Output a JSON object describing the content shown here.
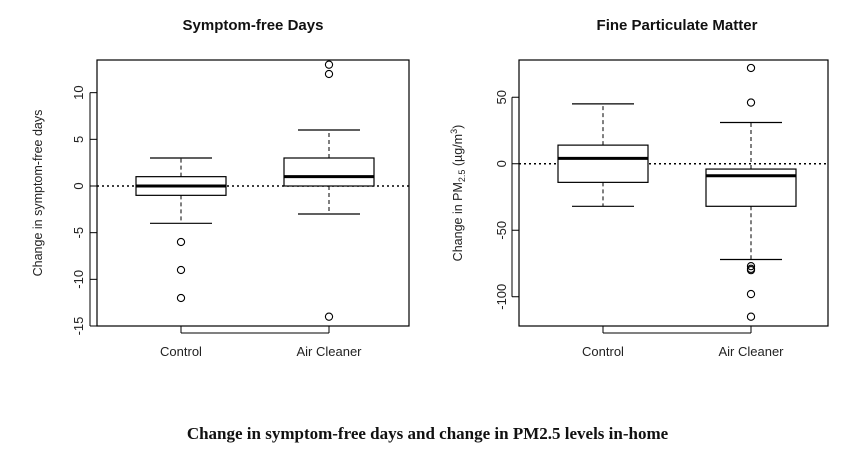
{
  "caption": "Change in symptom-free days and change in PM2.5 levels in-home",
  "chart_data": [
    {
      "type": "box",
      "title": "Symptom-free Days",
      "ylabel": "Change in symptom-free days",
      "ylabel_parts": [
        "Change in symptom-free days"
      ],
      "categories": [
        "Control",
        "Air Cleaner"
      ],
      "ylim": [
        -15,
        13.5
      ],
      "yticks": [
        -15,
        -10,
        -5,
        0,
        5,
        10
      ],
      "reference_line": 0,
      "boxes": [
        {
          "name": "Control",
          "whisker_low": -4,
          "q1": -1,
          "median": 0,
          "q3": 1,
          "whisker_high": 3,
          "outliers": [
            -6,
            -9,
            -12
          ]
        },
        {
          "name": "Air Cleaner",
          "whisker_low": -3,
          "q1": 0,
          "median": 1,
          "q3": 3,
          "whisker_high": 6,
          "outliers": [
            13,
            12,
            -14
          ]
        }
      ]
    },
    {
      "type": "box",
      "title": "Fine Particulate Matter",
      "ylabel": "Change in PM2.5 (µg/m³)",
      "ylabel_parts": [
        "Change in PM",
        "2.5",
        " (µg/m",
        "3",
        ")"
      ],
      "categories": [
        "Control",
        "Air Cleaner"
      ],
      "ylim": [
        -122,
        78
      ],
      "yticks": [
        -100,
        -50,
        0,
        50
      ],
      "reference_line": 0,
      "boxes": [
        {
          "name": "Control",
          "whisker_low": -32,
          "q1": -14,
          "median": 4,
          "q3": 14,
          "whisker_high": 45,
          "outliers": []
        },
        {
          "name": "Air Cleaner",
          "whisker_low": -72,
          "q1": -32,
          "median": -9,
          "q3": -4,
          "whisker_high": 31,
          "outliers": [
            72,
            46,
            -77,
            -79,
            -80,
            -98,
            -115
          ]
        }
      ]
    }
  ]
}
